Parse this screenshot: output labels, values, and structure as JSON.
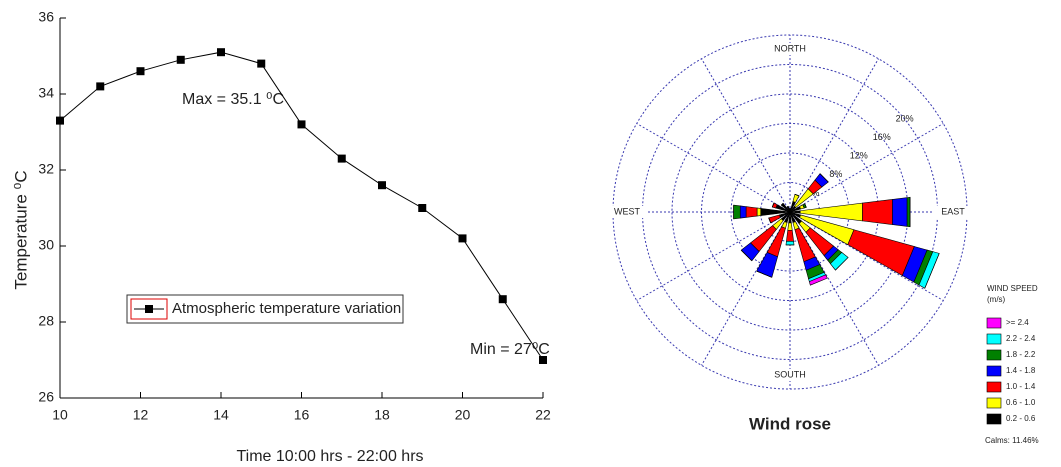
{
  "chart_data": [
    {
      "type": "line",
      "x_label": "Time 10:00 hrs - 22:00 hrs",
      "y_label": "Temperature ⁰C",
      "x": [
        10,
        11,
        12,
        13,
        14,
        15,
        16,
        17,
        18,
        19,
        20,
        21,
        22
      ],
      "series": [
        {
          "name": "Atmospheric temperature variation",
          "color": "#000000",
          "values": [
            33.3,
            34.2,
            34.6,
            34.9,
            35.1,
            34.8,
            33.2,
            32.3,
            31.6,
            31.0,
            30.2,
            28.6,
            27.0
          ]
        }
      ],
      "xlim": [
        10,
        22
      ],
      "xticks": [
        10,
        12,
        14,
        16,
        18,
        20,
        22
      ],
      "ylim": [
        26,
        36
      ],
      "yticks": [
        26,
        28,
        30,
        32,
        34,
        36
      ],
      "annotations": [
        "Max = 35.1 ⁰C",
        "Min = 27⁰C"
      ]
    },
    {
      "type": "windrose",
      "title": "Wind rose",
      "categories": [
        "NORTH",
        null,
        null,
        null,
        "EAST",
        null,
        null,
        null,
        "SOUTH",
        null,
        null,
        null,
        "WEST",
        null,
        null,
        null
      ],
      "rlim": [
        0,
        24
      ],
      "rticks": [
        {
          "value": 4,
          "label": "4%"
        },
        {
          "value": 8,
          "label": "8%"
        },
        {
          "value": 12,
          "label": "12%"
        },
        {
          "value": 16,
          "label": "16%"
        },
        {
          "value": 20,
          "label": "20%"
        }
      ],
      "legend_title": "WIND SPEED",
      "legend_unit": "(m/s)",
      "calms_label": "Calms: 11.46%",
      "series": [
        {
          "name": "0.2 - 0.6",
          "color": "#000000",
          "values": [
            0.5,
            1.5,
            1.0,
            1.5,
            1.4,
            1.5,
            2.0,
            1.5,
            1.5,
            1.5,
            1.5,
            1.5,
            4.0,
            2.0,
            1.5,
            0.8
          ]
        },
        {
          "name": "0.6 - 1.0",
          "color": "#ffff00",
          "values": [
            0,
            1.0,
            3.0,
            0.5,
            8.5,
            7.5,
            1.5,
            1.0,
            1.0,
            0.8,
            1.5,
            0,
            0.5,
            0,
            0,
            0
          ]
        },
        {
          "name": "1.0 - 1.4",
          "color": "#ff0000",
          "values": [
            0,
            0,
            1.5,
            0,
            4.1,
            8.5,
            4.0,
            4.5,
            1.5,
            4.0,
            3.8,
            1.5,
            1.5,
            0.5,
            0,
            0
          ]
        },
        {
          "name": "1.4 - 1.8",
          "color": "#0000ff",
          "values": [
            0,
            0,
            1.1,
            0,
            2.0,
            1.8,
            0.8,
            1.2,
            0,
            2.9,
            1.6,
            0,
            0.8,
            0,
            0,
            0
          ]
        },
        {
          "name": "1.8 - 2.2",
          "color": "#008000",
          "values": [
            0,
            0,
            0,
            0.3,
            0.4,
            0.8,
            0.6,
            1.2,
            0,
            0,
            0,
            0,
            0.9,
            0,
            0,
            0
          ]
        },
        {
          "name": "2.2 - 2.4",
          "color": "#00ffff",
          "values": [
            0,
            0,
            0,
            0,
            0,
            0.9,
            1.1,
            0.4,
            0.5,
            0,
            0,
            0,
            0,
            0,
            0,
            0
          ]
        },
        {
          "name": ">= 2.4",
          "color": "#ff00ff",
          "values": [
            0,
            0,
            0,
            0,
            0,
            0,
            0,
            0.5,
            0,
            0,
            0,
            0,
            0,
            0,
            0,
            0
          ]
        }
      ]
    }
  ]
}
